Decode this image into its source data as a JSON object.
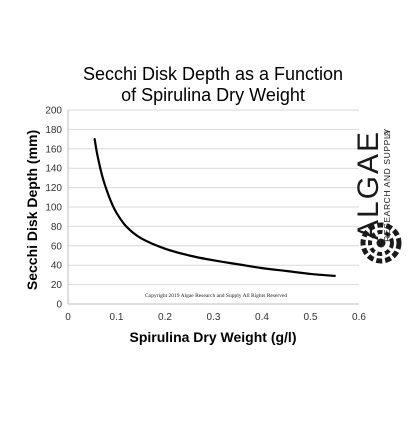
{
  "chart_data": {
    "type": "line",
    "title_lines": [
      "Secchi Disk Depth as a Function",
      "of Spirulina Dry Weight"
    ],
    "xlabel": "Spirulina Dry Weight (g/l)",
    "ylabel": "Secchi Disk Depth (mm)",
    "xlim": [
      0,
      0.6
    ],
    "ylim": [
      0,
      200
    ],
    "xticks": [
      "0",
      "0.1",
      "0.2",
      "0.3",
      "0.4",
      "0.5",
      "0.6"
    ],
    "yticks": [
      "0",
      "20",
      "40",
      "60",
      "80",
      "100",
      "120",
      "140",
      "160",
      "180",
      "200"
    ],
    "grid": "horizontal",
    "legend": "none",
    "line_color": "#000000",
    "series": [
      {
        "x": [
          0.055,
          0.06,
          0.07,
          0.08,
          0.09,
          0.1,
          0.12,
          0.15,
          0.2,
          0.25,
          0.3,
          0.35,
          0.4,
          0.45,
          0.5,
          0.55
        ],
        "y": [
          170,
          155,
          133,
          117,
          104,
          94,
          80,
          68,
          57,
          50,
          45,
          41,
          37,
          34,
          31,
          29
        ]
      }
    ],
    "annotation": "Copyright 2019 Algae Research and Supply All Rights Reserved"
  },
  "logo": {
    "name": "algae-research-logo",
    "word": "ALGAE",
    "registered": "®",
    "subtitle": "RESEARCH AND SUPPLY"
  }
}
